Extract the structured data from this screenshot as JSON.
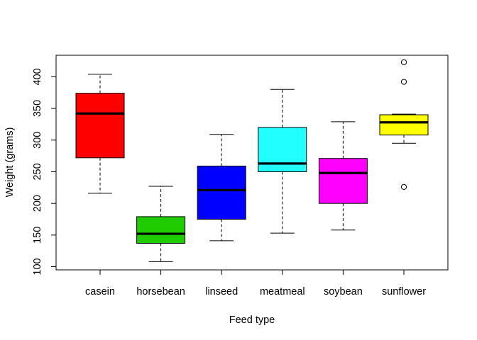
{
  "chart_data": {
    "type": "boxplot",
    "xlabel": "Feed type",
    "ylabel": "Weight (grams)",
    "ylim": [
      95,
      434
    ],
    "yticks": [
      100,
      150,
      200,
      250,
      300,
      350,
      400
    ],
    "categories": [
      "casein",
      "horsebean",
      "linseed",
      "meatmeal",
      "soybean",
      "sunflower"
    ],
    "boxes": [
      {
        "category": "casein",
        "color": "#FF0000",
        "min": 216,
        "q1": 272,
        "median": 342,
        "q3": 374,
        "max": 404,
        "outliers": []
      },
      {
        "category": "horsebean",
        "color": "#1ECC00",
        "min": 108,
        "q1": 137,
        "median": 152,
        "q3": 179,
        "max": 227,
        "outliers": []
      },
      {
        "category": "linseed",
        "color": "#0000FF",
        "min": 141,
        "q1": 175,
        "median": 221,
        "q3": 259,
        "max": 309,
        "outliers": []
      },
      {
        "category": "meatmeal",
        "color": "#22FFFF",
        "min": 153,
        "q1": 250,
        "median": 263,
        "q3": 320,
        "max": 380,
        "outliers": []
      },
      {
        "category": "soybean",
        "color": "#FF00FF",
        "min": 158,
        "q1": 200,
        "median": 248,
        "q3": 271,
        "max": 329,
        "outliers": []
      },
      {
        "category": "sunflower",
        "color": "#FFFF00",
        "min": 295,
        "q1": 308,
        "median": 328,
        "q3": 340,
        "max": 341,
        "outliers": [
          423,
          392,
          226
        ]
      }
    ]
  }
}
